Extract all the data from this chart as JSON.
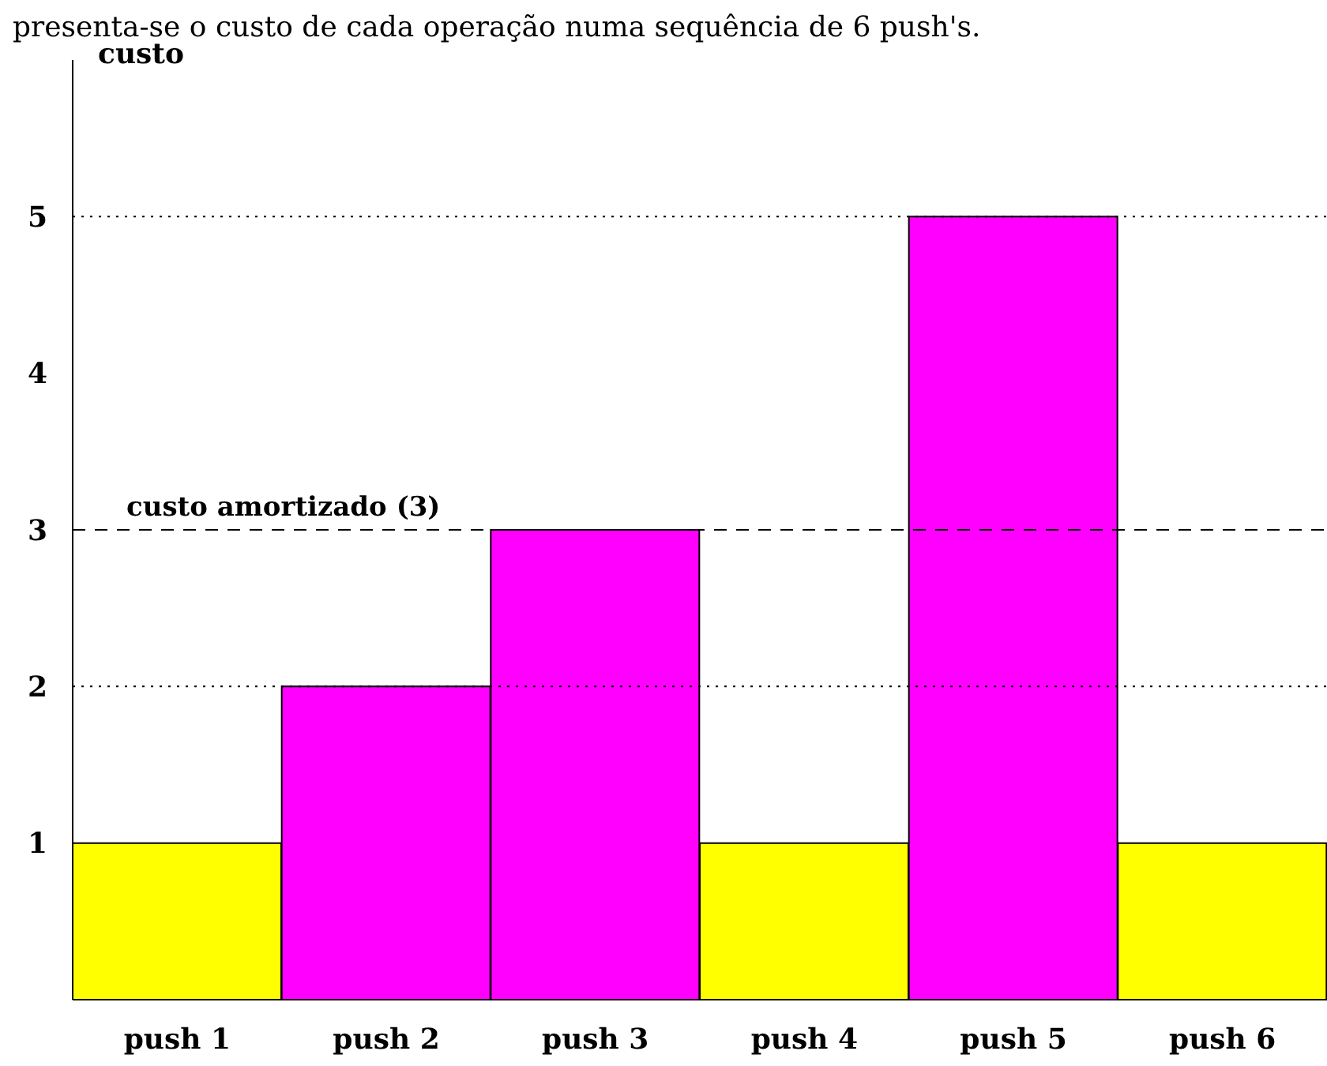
{
  "chart_data": {
    "type": "bar",
    "title": "presenta-se o custo de cada operação numa sequência de 6 push's.",
    "ylabel": "custo",
    "categories": [
      "push 1",
      "push 2",
      "push 3",
      "push 4",
      "push 5",
      "push 6"
    ],
    "values": [
      1,
      2,
      3,
      1,
      5,
      1
    ],
    "colors": [
      "#ffff00",
      "#ff00ff",
      "#ff00ff",
      "#ffff00",
      "#ff00ff",
      "#ffff00"
    ],
    "ylim": [
      0,
      6
    ],
    "yticks": [
      1,
      2,
      3,
      4,
      5
    ],
    "grid": false,
    "ref_lines": [
      {
        "axis": "y",
        "value": 3,
        "label": "custo amortizado (3)",
        "line_style": "dashed",
        "color": "#000000"
      },
      {
        "axis": "y",
        "value": 2,
        "label": null,
        "line_style": "dotted",
        "color": "#000000"
      },
      {
        "axis": "y",
        "value": 5,
        "label": null,
        "line_style": "dotted",
        "color": "#000000"
      }
    ]
  }
}
